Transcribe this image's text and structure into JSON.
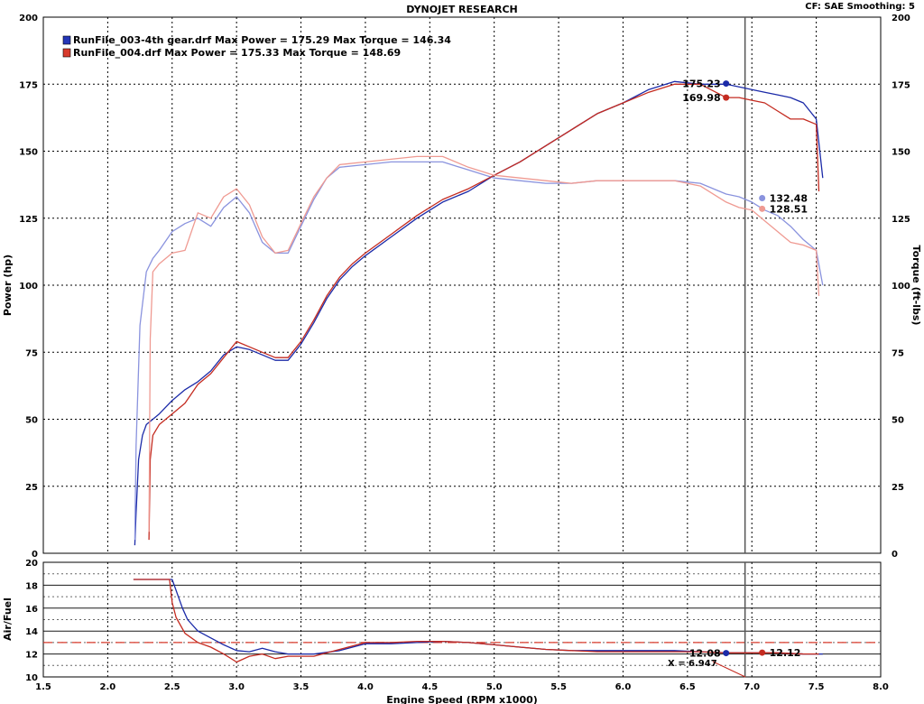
{
  "header": {
    "title": "DYNOJET RESEARCH",
    "settings": "CF: SAE  Smoothing: 5"
  },
  "legend": [
    {
      "text": "RunFile_003-4th gear.drf Max Power = 175.29     Max Torque = 146.34",
      "color": "#2436b8"
    },
    {
      "text": "RunFile_004.drf Max Power = 175.33     Max Torque = 148.69",
      "color": "#d83b2c"
    }
  ],
  "colors": {
    "run003_power": "#1b2aa8",
    "run003_torque": "#8a93de",
    "run004_power": "#c42b20",
    "run004_torque": "#ef9a92",
    "grid": "#000000",
    "cursor": "#555555",
    "af_ref": "#d83b2c"
  },
  "chart_data": [
    {
      "type": "line",
      "title": "DYNOJET RESEARCH",
      "xlabel": "",
      "ylabel": "Power (hp)",
      "y2label": "Torque (ft-lbs)",
      "xlim": [
        1.5,
        8.0
      ],
      "ylim": [
        0,
        200
      ],
      "y2lim": [
        0,
        200
      ],
      "grid": true,
      "yticks": [
        "0",
        "25",
        "50",
        "75",
        "100",
        "125",
        "150",
        "175",
        "200"
      ],
      "y2ticks": [
        "0",
        "25",
        "50",
        "75",
        "100",
        "125",
        "150",
        "175",
        "200"
      ],
      "legend_position": "top-left",
      "cursor_x": 6.947,
      "series": [
        {
          "name": "RunFile_003-4th gear.drf",
          "quantity": "Power",
          "color": "#1b2aa8",
          "x": [
            2.21,
            2.22,
            2.24,
            2.27,
            2.3,
            2.35,
            2.4,
            2.5,
            2.6,
            2.7,
            2.8,
            2.9,
            3.0,
            3.1,
            3.2,
            3.3,
            3.4,
            3.5,
            3.6,
            3.7,
            3.8,
            3.9,
            4.0,
            4.2,
            4.4,
            4.6,
            4.8,
            5.0,
            5.2,
            5.4,
            5.6,
            5.8,
            6.0,
            6.2,
            6.4,
            6.6,
            6.8,
            6.9,
            7.0,
            7.1,
            7.2,
            7.3,
            7.4,
            7.5,
            7.55
          ],
          "y": [
            3,
            15,
            35,
            44,
            48,
            50,
            52,
            57,
            61,
            64,
            68,
            74,
            77,
            76,
            74,
            72,
            72,
            78,
            86,
            95,
            102,
            107,
            111,
            118,
            125,
            131,
            135,
            141,
            146,
            152,
            158,
            164,
            168,
            173,
            176,
            175,
            175,
            174,
            173,
            172,
            171,
            170,
            168,
            162,
            140
          ]
        },
        {
          "name": "RunFile_003-4th gear.drf",
          "quantity": "Torque",
          "color": "#8a93de",
          "x": [
            2.21,
            2.22,
            2.25,
            2.3,
            2.35,
            2.4,
            2.5,
            2.6,
            2.7,
            2.8,
            2.9,
            3.0,
            3.1,
            3.2,
            3.3,
            3.4,
            3.5,
            3.6,
            3.7,
            3.8,
            4.0,
            4.2,
            4.4,
            4.6,
            4.8,
            5.0,
            5.2,
            5.4,
            5.6,
            5.8,
            6.0,
            6.2,
            6.4,
            6.6,
            6.8,
            6.9,
            7.0,
            7.1,
            7.2,
            7.3,
            7.4,
            7.5,
            7.55
          ],
          "y": [
            5,
            40,
            85,
            105,
            110,
            113,
            120,
            123,
            125,
            122,
            129,
            133,
            127,
            116,
            112,
            112,
            122,
            132,
            140,
            144,
            145,
            146,
            146,
            146,
            143,
            140,
            139,
            138,
            138,
            139,
            139,
            139,
            139,
            138,
            134,
            133,
            131,
            128,
            126,
            122,
            117,
            113,
            100
          ]
        },
        {
          "name": "RunFile_004.drf",
          "quantity": "Power",
          "color": "#c42b20",
          "x": [
            2.32,
            2.33,
            2.35,
            2.4,
            2.5,
            2.6,
            2.7,
            2.8,
            2.9,
            3.0,
            3.1,
            3.2,
            3.3,
            3.4,
            3.5,
            3.6,
            3.7,
            3.8,
            3.9,
            4.0,
            4.2,
            4.4,
            4.6,
            4.8,
            5.0,
            5.2,
            5.4,
            5.6,
            5.8,
            6.0,
            6.2,
            6.4,
            6.6,
            6.8,
            6.9,
            7.0,
            7.1,
            7.2,
            7.3,
            7.4,
            7.5,
            7.52
          ],
          "y": [
            5,
            35,
            44,
            48,
            52,
            56,
            63,
            67,
            73,
            79,
            77,
            75,
            73,
            73,
            79,
            87,
            96,
            103,
            108,
            112,
            119,
            126,
            132,
            136,
            141,
            146,
            152,
            158,
            164,
            168,
            172,
            175,
            175,
            170,
            170,
            169,
            168,
            165,
            162,
            162,
            160,
            135
          ]
        },
        {
          "name": "RunFile_004.drf",
          "quantity": "Torque",
          "color": "#ef9a92",
          "x": [
            2.32,
            2.33,
            2.35,
            2.4,
            2.5,
            2.6,
            2.7,
            2.8,
            2.9,
            3.0,
            3.1,
            3.2,
            3.3,
            3.4,
            3.5,
            3.6,
            3.7,
            3.8,
            4.0,
            4.2,
            4.4,
            4.6,
            4.8,
            5.0,
            5.2,
            5.4,
            5.6,
            5.8,
            6.0,
            6.2,
            6.4,
            6.6,
            6.8,
            6.9,
            7.0,
            7.1,
            7.2,
            7.3,
            7.4,
            7.5,
            7.52
          ],
          "y": [
            8,
            80,
            105,
            108,
            112,
            113,
            127,
            125,
            133,
            136,
            130,
            118,
            112,
            113,
            123,
            133,
            140,
            145,
            146,
            147,
            148,
            148,
            144,
            141,
            140,
            139,
            138,
            139,
            139,
            139,
            139,
            137,
            131,
            129,
            128,
            124,
            120,
            116,
            115,
            113,
            96
          ]
        }
      ],
      "annotations": [
        {
          "label": "175.23",
          "x": 6.8,
          "y": 175.23,
          "color": "#1b2aa8"
        },
        {
          "label": "169.98",
          "x": 6.8,
          "y": 169.98,
          "color": "#c42b20"
        },
        {
          "label": "132.48",
          "x": 7.08,
          "y": 132.48,
          "color": "#8a93de"
        },
        {
          "label": "128.51",
          "x": 7.08,
          "y": 128.51,
          "color": "#ef9a92"
        }
      ]
    },
    {
      "type": "line",
      "title": "",
      "xlabel": "Engine Speed (RPM x1000)",
      "ylabel": "Air/Fuel",
      "xlim": [
        1.5,
        8.0
      ],
      "ylim": [
        10,
        20
      ],
      "grid": true,
      "xticks": [
        "1.5",
        "2.0",
        "2.5",
        "3.0",
        "3.5",
        "4.0",
        "4.5",
        "5.0",
        "5.5",
        "6.0",
        "6.5",
        "7.0",
        "7.5",
        "8.0"
      ],
      "yticks": [
        "10",
        "12",
        "14",
        "16",
        "18",
        "20"
      ],
      "reference_line": {
        "y": 13.0,
        "style": "dashed",
        "color": "#d83b2c"
      },
      "series": [
        {
          "name": "RunFile_003-4th gear.drf",
          "quantity": "Air/Fuel",
          "color": "#1b2aa8",
          "x": [
            2.2,
            2.5,
            2.58,
            2.62,
            2.7,
            2.8,
            2.9,
            3.0,
            3.1,
            3.2,
            3.3,
            3.4,
            3.6,
            3.8,
            4.0,
            4.2,
            4.4,
            4.6,
            4.8,
            5.0,
            5.2,
            5.4,
            5.6,
            5.8,
            6.0,
            6.2,
            6.4,
            6.6,
            6.8,
            7.0,
            7.2,
            7.4,
            7.55
          ],
          "y": [
            18.5,
            18.5,
            16.0,
            15.0,
            14.0,
            13.4,
            12.8,
            12.3,
            12.2,
            12.5,
            12.2,
            12.0,
            12.0,
            12.3,
            12.9,
            12.9,
            13.0,
            13.1,
            13.0,
            12.8,
            12.6,
            12.4,
            12.3,
            12.3,
            12.3,
            12.3,
            12.3,
            12.2,
            12.1,
            12.1,
            12.1,
            12.0,
            12.0
          ]
        },
        {
          "name": "RunFile_004.drf",
          "quantity": "Air/Fuel",
          "color": "#c42b20",
          "x": [
            2.2,
            2.48,
            2.5,
            2.53,
            2.6,
            2.7,
            2.8,
            2.9,
            3.0,
            3.1,
            3.2,
            3.3,
            3.4,
            3.6,
            3.8,
            4.0,
            4.2,
            4.4,
            4.6,
            4.8,
            5.0,
            5.2,
            5.4,
            5.6,
            5.8,
            6.0,
            6.2,
            6.4,
            6.6,
            6.8,
            7.0,
            7.2,
            7.4,
            7.52
          ],
          "y": [
            18.5,
            18.5,
            16.5,
            15.2,
            13.8,
            13.0,
            12.6,
            12.0,
            11.3,
            11.8,
            12.0,
            11.6,
            11.8,
            11.8,
            12.4,
            13.0,
            13.0,
            13.1,
            13.1,
            13.0,
            12.8,
            12.6,
            12.4,
            12.3,
            12.2,
            12.2,
            12.2,
            12.2,
            12.2,
            12.1,
            12.1,
            12.1,
            12.0,
            12.0
          ]
        }
      ],
      "annotations": [
        {
          "label": "12.08",
          "x": 6.8,
          "y": 12.08,
          "color": "#1b2aa8"
        },
        {
          "label": "12.12",
          "x": 7.08,
          "y": 12.12,
          "color": "#c42b20"
        }
      ],
      "cursor_readout": "X = 6.947"
    }
  ]
}
